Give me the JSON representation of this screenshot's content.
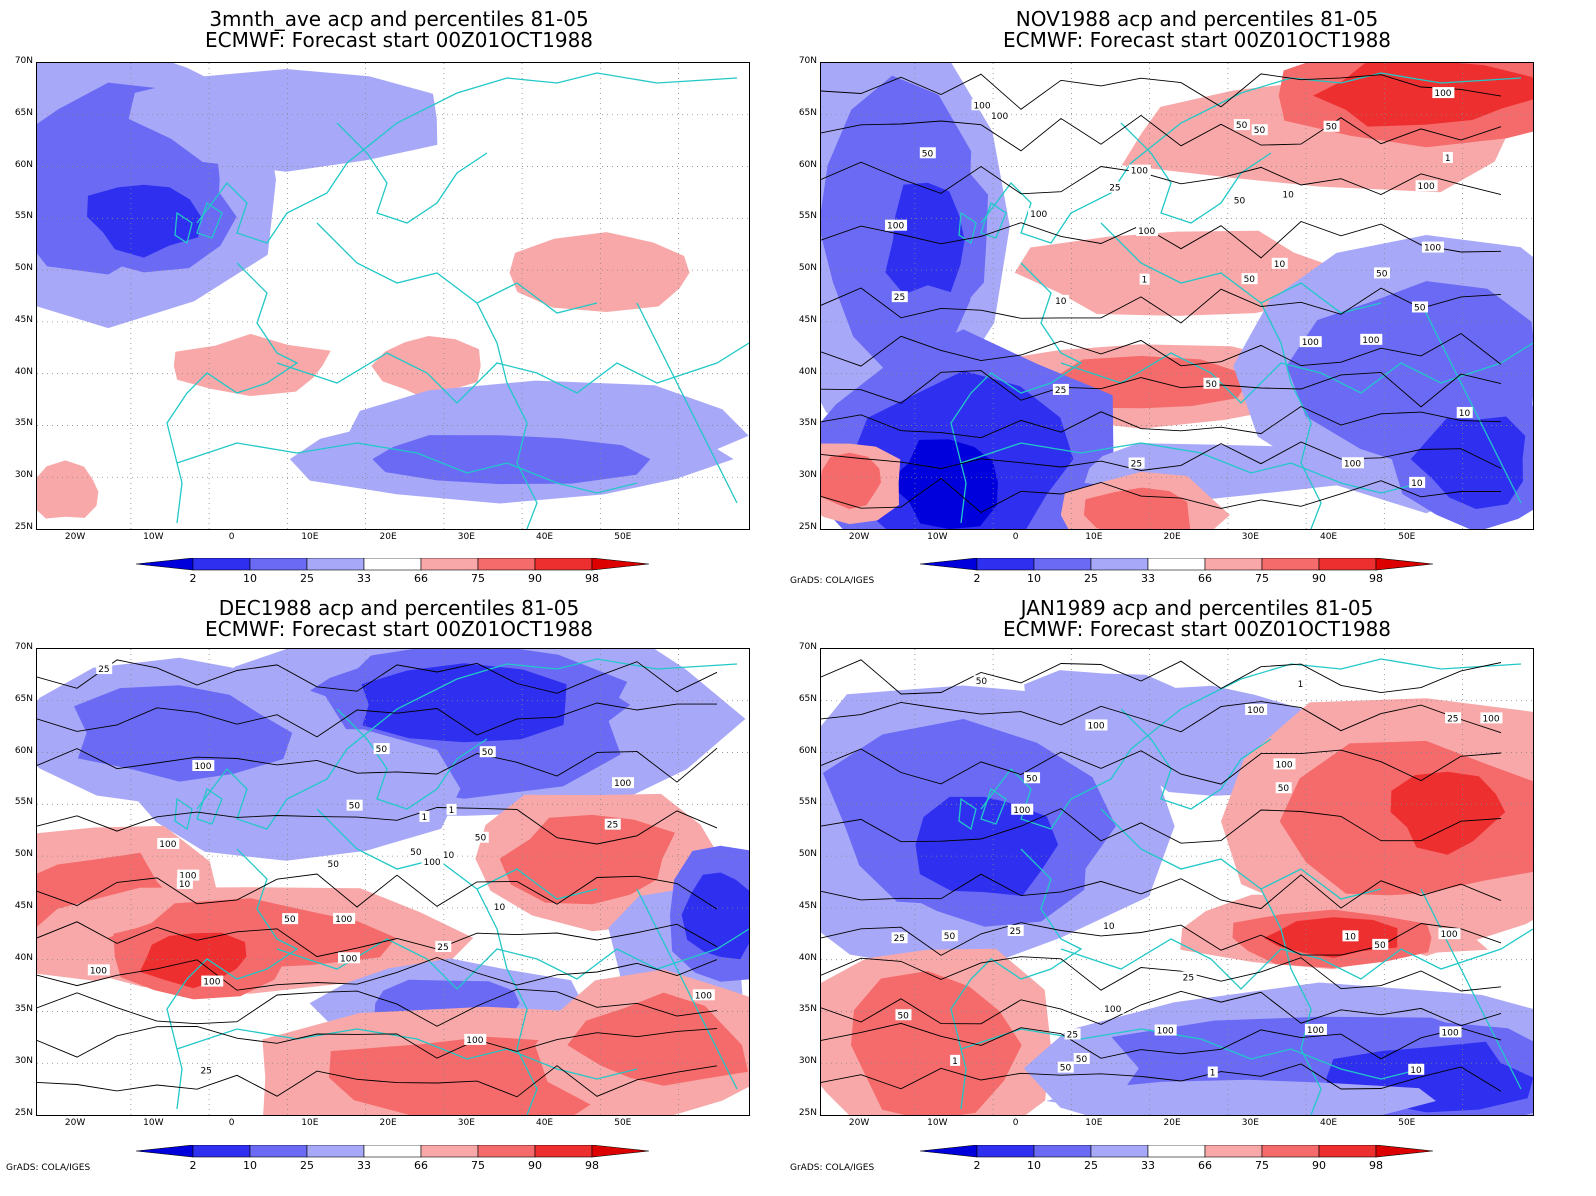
{
  "panels": [
    {
      "title_line1": "3mnth_ave acp and percentiles 81-05",
      "title_line2": "ECMWF: Forecast start 00Z01OCT1988"
    },
    {
      "title_line1": "NOV1988 acp and percentiles 81-05",
      "title_line2": "ECMWF: Forecast start 00Z01OCT1988"
    },
    {
      "title_line1": "DEC1988 acp and percentiles 81-05",
      "title_line2": "ECMWF: Forecast start 00Z01OCT1988"
    },
    {
      "title_line1": "JAN1989 acp and percentiles 81-05",
      "title_line2": "ECMWF: Forecast start 00Z01OCT1988"
    }
  ],
  "lat_labels": [
    "70N",
    "65N",
    "60N",
    "55N",
    "50N",
    "45N",
    "40N",
    "35N",
    "30N",
    "25N"
  ],
  "lon_labels": [
    "20W",
    "10W",
    "0",
    "10E",
    "20E",
    "30E",
    "40E",
    "50E"
  ],
  "colorbar": {
    "labels": [
      "2",
      "10",
      "25",
      "33",
      "66",
      "75",
      "90",
      "98"
    ],
    "colors": [
      "#0000dd",
      "#2f2ff0",
      "#6a6af5",
      "#a8a8f8",
      "#ffffff",
      "#f8a8a8",
      "#f56a6a",
      "#ee2f2f",
      "#dd0000"
    ]
  },
  "credit": "GrADS: COLA/IGES",
  "contour_labels": {
    "nov": [
      "100",
      "100",
      "100",
      "100",
      "100",
      "100",
      "100",
      "100",
      "100",
      "100",
      "100",
      "100",
      "50",
      "50",
      "50",
      "50",
      "50",
      "50",
      "50",
      "50",
      "50",
      "25",
      "25",
      "25",
      "25",
      "10",
      "10",
      "10",
      "10",
      "10",
      "1",
      "1"
    ],
    "dec": [
      "100",
      "100",
      "100",
      "100",
      "100",
      "100",
      "100",
      "100",
      "100",
      "100",
      "100",
      "50",
      "50",
      "50",
      "50",
      "50",
      "50",
      "50",
      "25",
      "25",
      "25",
      "10",
      "10",
      "10",
      "1",
      "1",
      "25"
    ],
    "jan": [
      "100",
      "100",
      "100",
      "100",
      "100",
      "100",
      "100",
      "100",
      "100",
      "100",
      "50",
      "50",
      "50",
      "50",
      "50",
      "50",
      "50",
      "50",
      "25",
      "25",
      "25",
      "25",
      "25",
      "10",
      "10",
      "1",
      "1",
      "1",
      "10"
    ]
  }
}
